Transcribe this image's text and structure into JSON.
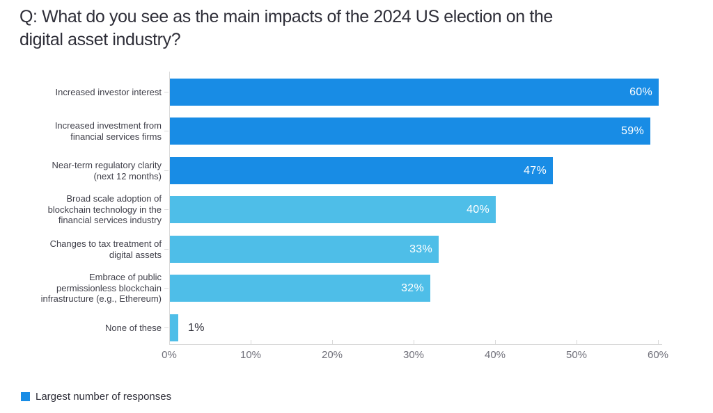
{
  "title": "Q: What do you see as the main impacts of the 2024 US election on the\ndigital asset industry?",
  "colors": {
    "primary": "#188CE5",
    "secondary": "#4EBEE8",
    "axis_line": "#D9D9D9",
    "tick_label": "#70707A",
    "category_label": "#3F3F49",
    "value_label_inside": "#FFFFFF",
    "value_label_outside": "#2E2E38",
    "title_text": "#2E2E38",
    "background": "#FFFFFF"
  },
  "chart_data": {
    "type": "bar",
    "orientation": "horizontal",
    "title": "Q: What do you see as the main impacts of the 2024 US election on the digital asset industry?",
    "xlabel": "",
    "ylabel": "",
    "xlim": [
      0,
      60
    ],
    "grid": false,
    "x_tick_values": [
      0,
      10,
      20,
      30,
      40,
      50,
      60
    ],
    "x_tick_labels": [
      "0%",
      "10%",
      "20%",
      "30%",
      "40%",
      "50%",
      "60%"
    ],
    "categories": [
      "Increased investor interest",
      "Increased investment from financial services firms",
      "Near-term regulatory clarity (next 12 months)",
      "Broad scale adoption of blockchain technology in the financial services industry",
      "Changes to tax treatment of digital assets",
      "Embrace of public permissionless blockchain infrastructure (e.g., Ethereum)",
      "None of these"
    ],
    "values": [
      60,
      59,
      47,
      40,
      33,
      32,
      1
    ],
    "rows": [
      {
        "label": "Increased investor interest",
        "value": 60,
        "display": "60%",
        "shade": "primary",
        "value_label_outside": false
      },
      {
        "label": "Increased investment from\nfinancial services firms",
        "value": 59,
        "display": "59%",
        "shade": "primary",
        "value_label_outside": false
      },
      {
        "label": "Near-term regulatory clarity\n(next 12 months)",
        "value": 47,
        "display": "47%",
        "shade": "primary",
        "value_label_outside": false
      },
      {
        "label": "Broad scale adoption of\nblockchain technology in the\nfinancial services industry",
        "value": 40,
        "display": "40%",
        "shade": "secondary",
        "value_label_outside": false
      },
      {
        "label": "Changes to tax treatment of\ndigital assets",
        "value": 33,
        "display": "33%",
        "shade": "secondary",
        "value_label_outside": false
      },
      {
        "label": "Embrace of public\npermissionless blockchain\ninfrastructure (e.g., Ethereum)",
        "value": 32,
        "display": "32%",
        "shade": "secondary",
        "value_label_outside": false
      },
      {
        "label": "None of these",
        "value": 1,
        "display": "1%",
        "shade": "secondary",
        "value_label_outside": true
      }
    ],
    "legend_position": "bottom-left",
    "legend": [
      {
        "label": "Largest number of responses",
        "color": "#188CE5"
      }
    ]
  }
}
